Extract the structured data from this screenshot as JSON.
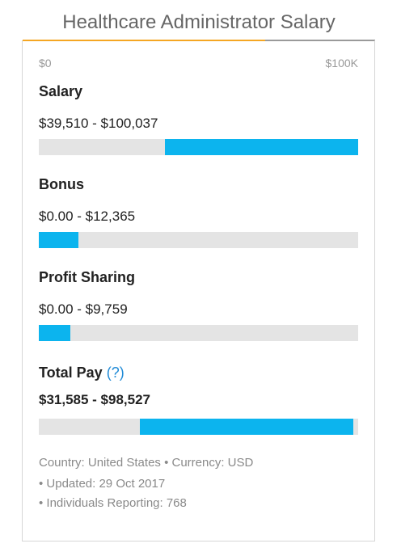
{
  "page": {
    "title": "Healthcare Administrator Salary"
  },
  "axis": {
    "min_label": "$0",
    "max_label": "$100K"
  },
  "sections": {
    "salary": {
      "label": "Salary",
      "range": "$39,510 - $100,037",
      "start": 0.395,
      "end": 1.0
    },
    "bonus": {
      "label": "Bonus",
      "range": "$0.00 - $12,365",
      "start": 0.0,
      "end": 0.124
    },
    "profit": {
      "label": "Profit Sharing",
      "range": "$0.00 - $9,759",
      "start": 0.0,
      "end": 0.098
    },
    "total": {
      "label": "Total Pay",
      "help": "(?)",
      "range": "$31,585 - $98,527",
      "start": 0.316,
      "end": 0.985
    }
  },
  "meta": {
    "line1": "Country: United States • Currency: USD",
    "line2": "• Updated: 29 Oct 2017",
    "line3": "• Individuals Reporting: 768"
  },
  "colors": {
    "accent": "#f5a623",
    "bar_fill": "#0cb4ee",
    "bar_track": "#e4e4e4",
    "help_link": "#1f8ad6"
  }
}
